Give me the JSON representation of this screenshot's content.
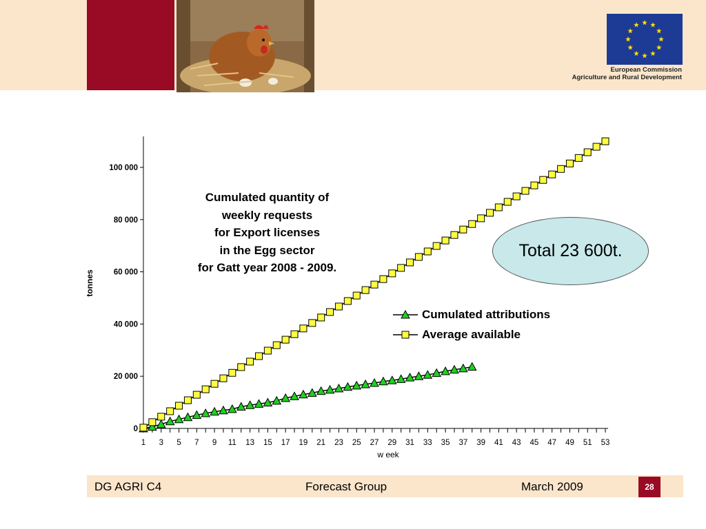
{
  "header": {
    "eu_caption_line1": "European Commission",
    "eu_caption_line2": "Agriculture and Rural Development"
  },
  "chart_data": {
    "type": "line",
    "title_lines": [
      "Cumulated quantity of",
      "weekly requests",
      "for Export licenses",
      "in the Egg sector",
      "for Gatt year 2008 - 2009."
    ],
    "xlabel": "w eek",
    "ylabel": "tonnes",
    "ylim": [
      0,
      110000
    ],
    "xlim": [
      1,
      53
    ],
    "y_ticks": [
      0,
      20000,
      40000,
      60000,
      80000,
      100000
    ],
    "y_tick_labels": [
      "0",
      "20 000",
      "40 000",
      "60 000",
      "80 000",
      "100 000"
    ],
    "x_tick_labels": [
      1,
      3,
      5,
      7,
      9,
      11,
      13,
      15,
      17,
      19,
      21,
      23,
      25,
      27,
      29,
      31,
      33,
      35,
      37,
      39,
      41,
      43,
      45,
      47,
      49,
      51,
      53
    ],
    "grid": false,
    "legend_position": "center-right",
    "series": [
      {
        "name": "Cumulated attributions",
        "marker": "triangle",
        "color": "#1ed11e",
        "x": [
          1,
          2,
          3,
          4,
          5,
          6,
          7,
          8,
          9,
          10,
          11,
          12,
          13,
          14,
          15,
          16,
          17,
          18,
          19,
          20,
          21,
          22,
          23,
          24,
          25,
          26,
          27,
          28,
          29,
          30,
          31,
          32,
          33,
          34,
          35,
          36,
          37,
          38
        ],
        "values": [
          0,
          600,
          1600,
          2700,
          3500,
          4300,
          5100,
          5800,
          6400,
          6900,
          7400,
          8300,
          8900,
          9400,
          9900,
          10600,
          11600,
          12300,
          13000,
          13600,
          14300,
          14800,
          15300,
          15900,
          16400,
          16900,
          17400,
          18000,
          18400,
          18900,
          19500,
          20000,
          20500,
          21200,
          21900,
          22500,
          23000,
          23600
        ]
      },
      {
        "name": "Average available",
        "marker": "square",
        "color": "#ffff40",
        "x": [
          1,
          2,
          3,
          4,
          5,
          6,
          7,
          8,
          9,
          10,
          11,
          12,
          13,
          14,
          15,
          16,
          17,
          18,
          19,
          20,
          21,
          22,
          23,
          24,
          25,
          26,
          27,
          28,
          29,
          30,
          31,
          32,
          33,
          34,
          35,
          36,
          37,
          38,
          39,
          40,
          41,
          42,
          43,
          44,
          45,
          46,
          47,
          48,
          49,
          50,
          51,
          52,
          53
        ],
        "values": [
          300,
          2400,
          4500,
          6600,
          8700,
          10800,
          12900,
          15000,
          17100,
          19200,
          21300,
          23500,
          25600,
          27700,
          29800,
          31900,
          34000,
          36100,
          38300,
          40400,
          42500,
          44600,
          46700,
          48800,
          50900,
          53000,
          55100,
          57200,
          59400,
          61500,
          63600,
          65700,
          67800,
          69900,
          72000,
          74100,
          76200,
          78300,
          80500,
          82600,
          84700,
          86800,
          88900,
          91000,
          93100,
          95200,
          97300,
          99400,
          101500,
          103600,
          105800,
          107900,
          110000
        ]
      }
    ]
  },
  "annotation": {
    "total_label": "Total 23 600t."
  },
  "footer": {
    "left": "DG AGRI C4",
    "center": "Forecast Group",
    "right": "March 2009",
    "page": "28"
  },
  "colors": {
    "accent_red": "#990b25",
    "band": "#fbe6cc",
    "eu_blue": "#1d3b95",
    "eu_star": "#ffdd00",
    "ellipse_fill": "#c8e8ea"
  }
}
